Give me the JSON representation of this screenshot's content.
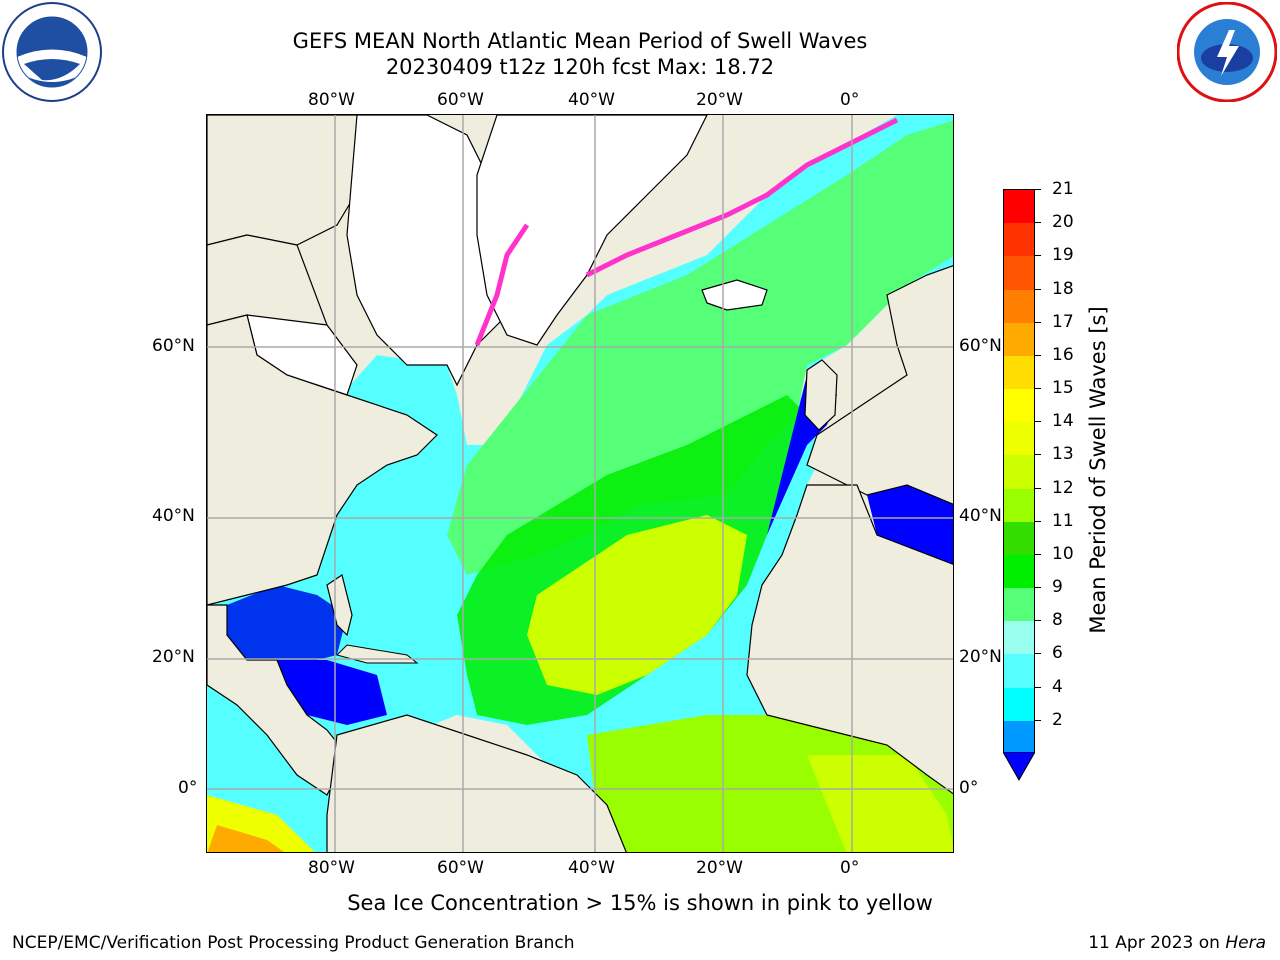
{
  "title": {
    "line1": "GEFS MEAN North Atlantic Mean Period of Swell Waves",
    "line2": "20230409 t12z 120h fcst   Max: 18.72"
  },
  "map": {
    "lon_labels": [
      "80°W",
      "60°W",
      "40°W",
      "20°W",
      "0°"
    ],
    "lat_labels": [
      "60°N",
      "40°N",
      "20°N",
      "0°"
    ]
  },
  "colorbar": {
    "label": "Mean Period of Swell Waves [s]",
    "ticks": [
      "21",
      "20",
      "19",
      "18",
      "17",
      "16",
      "15",
      "14",
      "13",
      "12",
      "11",
      "10",
      "9",
      "8",
      "6",
      "4",
      "2"
    ],
    "colors": [
      "#ff0000",
      "#ff3300",
      "#ff5500",
      "#ff8000",
      "#ffaa00",
      "#ffdd00",
      "#ffff00",
      "#eeff00",
      "#ccff00",
      "#99ff00",
      "#33dd00",
      "#00ee00",
      "#55ff77",
      "#99ffee",
      "#55ffff",
      "#00ffff",
      "#0099ff"
    ],
    "below_color": "#0000ff"
  },
  "note": "Sea Ice Concentration > 15% is shown in pink to yellow",
  "footer": {
    "left": "NCEP/EMC/Verification Post Processing Product Generation Branch",
    "right_date": "11 Apr 2023 on ",
    "right_host": "Hera"
  },
  "logos": {
    "left": "noaa-logo",
    "right": "nws-logo"
  },
  "chart_data": {
    "type": "heatmap",
    "title": "GEFS MEAN North Atlantic Mean Period of Swell Waves",
    "subtitle": "20230409 t12z 120h fcst   Max: 18.72",
    "max_value": 18.72,
    "units": "s",
    "colorbar_levels": [
      2,
      4,
      6,
      8,
      9,
      10,
      11,
      12,
      13,
      14,
      15,
      16,
      17,
      18,
      19,
      20,
      21
    ],
    "lon_ticks": [
      -80,
      -60,
      -40,
      -20,
      0
    ],
    "lat_ticks": [
      60,
      40,
      20,
      0
    ],
    "grid": true
  }
}
